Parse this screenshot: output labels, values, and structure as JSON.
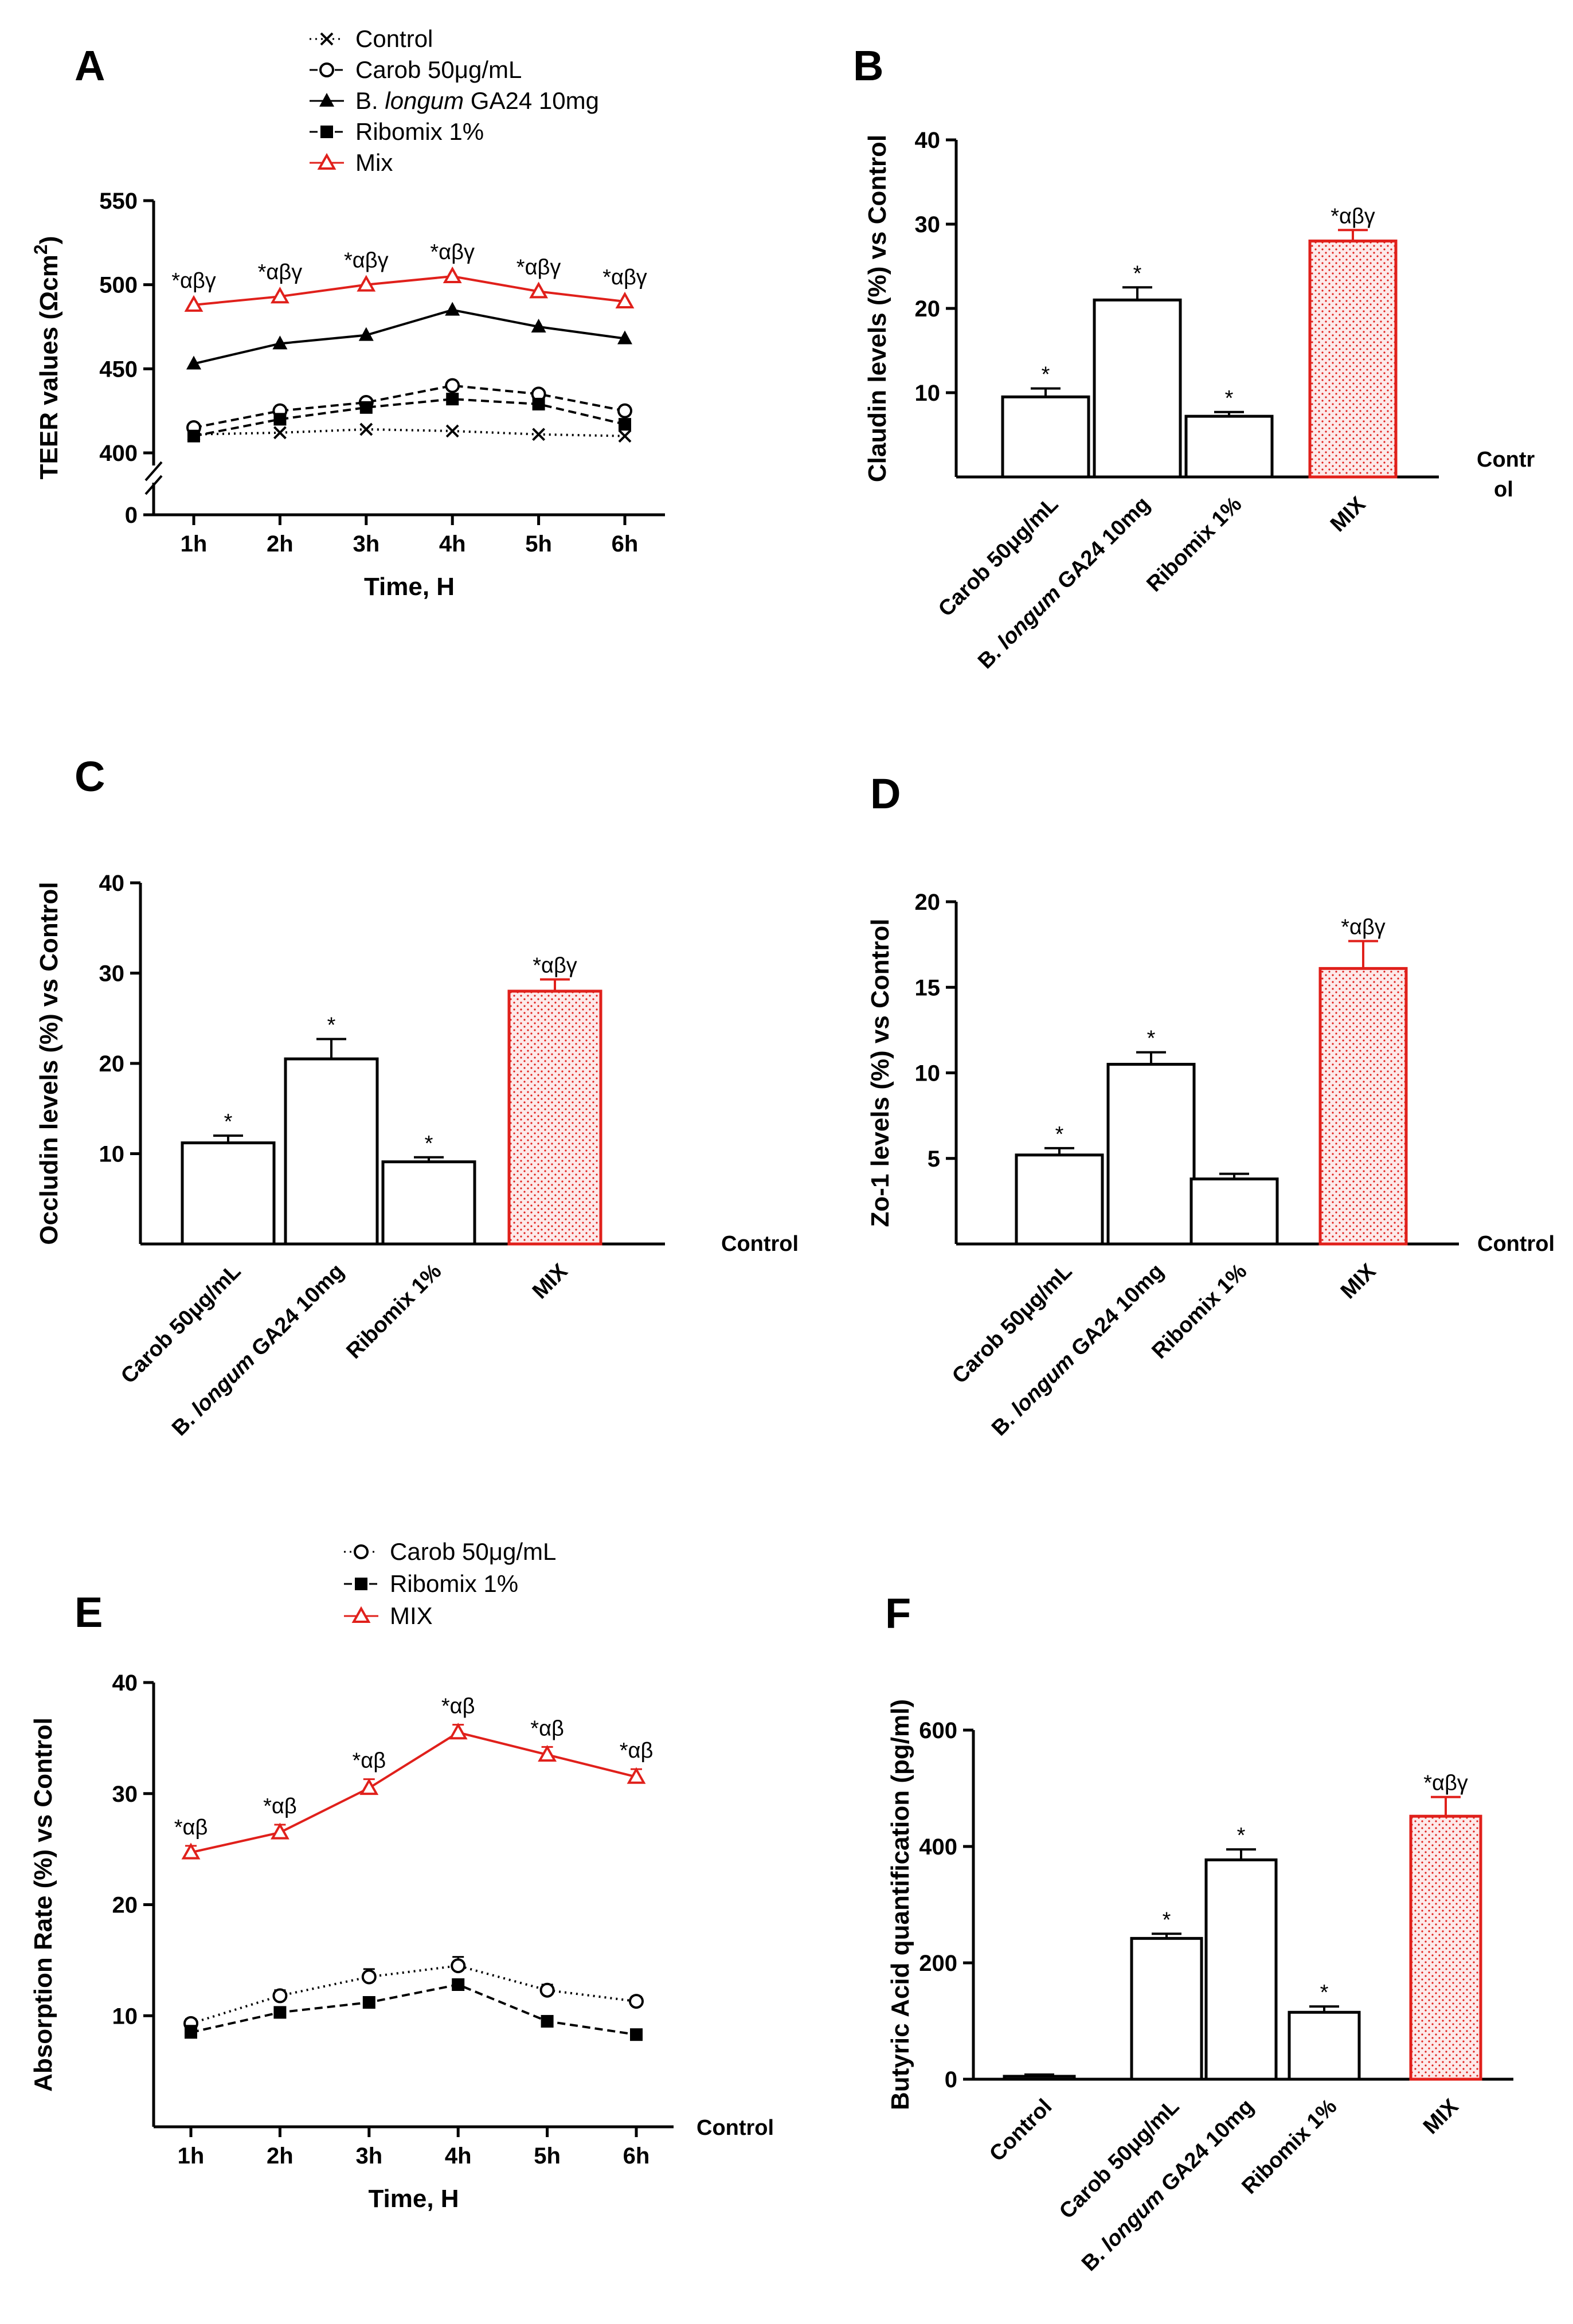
{
  "chart_data": [
    {
      "panel": "A",
      "type": "line",
      "xlabel": "Time, H",
      "ylabel": "TEER values (Ωcm²)",
      "ylabel_main": "TEER values (",
      "ylabel_unit": "Ωcm",
      "ylabel_sup": "2",
      "ylabel_close": ")",
      "x": [
        "1h",
        "2h",
        "3h",
        "4h",
        "5h",
        "6h"
      ],
      "ylim": [
        400,
        550
      ],
      "yticks": [
        "400",
        "450",
        "500",
        "550"
      ],
      "ybreak": true,
      "y_zero_label": "0",
      "series": [
        {
          "name": "Control",
          "marker": "x",
          "color": "#000000",
          "dash": "dotted",
          "values": [
            411,
            412,
            414,
            413,
            411,
            410
          ]
        },
        {
          "name": "Carob 50μg/mL",
          "marker": "open-circle",
          "color": "#000000",
          "dash": "dashed",
          "values": [
            415,
            425,
            430,
            440,
            435,
            425
          ]
        },
        {
          "name": "B. longum GA24 10mg",
          "marker": "filled-triangle",
          "color": "#000000",
          "dash": "solid",
          "values": [
            453,
            465,
            470,
            485,
            475,
            468
          ]
        },
        {
          "name": "Ribomix 1%",
          "marker": "filled-square",
          "color": "#000000",
          "dash": "dashed",
          "values": [
            410,
            420,
            427,
            432,
            429,
            417
          ]
        },
        {
          "name": "Mix",
          "marker": "open-triangle",
          "color": "#e0201b",
          "dash": "solid",
          "values": [
            488,
            493,
            500,
            505,
            496,
            490
          ]
        }
      ],
      "legend": [
        {
          "label_pre": "Control",
          "label_it": "",
          "label_post": ""
        },
        {
          "label_pre": "Carob 50μg/mL",
          "label_it": "",
          "label_post": ""
        },
        {
          "label_pre": "B. ",
          "label_it": "longum",
          "label_post": " GA24 10mg"
        },
        {
          "label_pre": "Ribomix 1%",
          "label_it": "",
          "label_post": ""
        },
        {
          "label_pre": "Mix",
          "label_it": "",
          "label_post": ""
        }
      ],
      "annotations": [
        "*αβγ",
        "*αβγ",
        "*αβγ",
        "*αβγ",
        "*αβγ",
        "*αβγ"
      ]
    },
    {
      "panel": "B",
      "type": "bar",
      "ylabel": "Claudin levels (%) vs Control",
      "ylim": [
        0,
        40
      ],
      "yticks": [
        "10",
        "20",
        "30",
        "40"
      ],
      "baseline_label": [
        "Contr",
        "ol"
      ],
      "categories": [
        {
          "pre": "Carob 50μg/mL",
          "it": "",
          "post": ""
        },
        {
          "pre": "B. ",
          "it": "longum",
          "post": " GA24 10mg"
        },
        {
          "pre": "Ribomix 1%",
          "it": "",
          "post": ""
        },
        {
          "pre": "MIX",
          "it": "",
          "post": ""
        }
      ],
      "values": [
        9.5,
        21,
        7.2,
        28
      ],
      "errors": [
        1,
        1.5,
        0.5,
        1.3
      ],
      "annotations": [
        "*",
        "*",
        "*",
        "*αβγ"
      ],
      "colors": [
        "#000000",
        "#000000",
        "#000000",
        "#e0201b"
      ]
    },
    {
      "panel": "C",
      "type": "bar",
      "ylabel": "Occludin levels (%) vs Control",
      "ylim": [
        0,
        40
      ],
      "yticks": [
        "10",
        "20",
        "30",
        "40"
      ],
      "baseline_label": [
        "Control"
      ],
      "categories": [
        {
          "pre": "Carob 50μg/mL",
          "it": "",
          "post": ""
        },
        {
          "pre": "B. ",
          "it": "longum",
          "post": " GA24 10mg"
        },
        {
          "pre": "Ribomix 1%",
          "it": "",
          "post": ""
        },
        {
          "pre": "MIX",
          "it": "",
          "post": ""
        }
      ],
      "values": [
        11.2,
        20.5,
        9.1,
        28
      ],
      "errors": [
        0.8,
        2.2,
        0.5,
        1.3
      ],
      "annotations": [
        "*",
        "*",
        "*",
        "*αβγ"
      ],
      "colors": [
        "#000000",
        "#000000",
        "#000000",
        "#e0201b"
      ]
    },
    {
      "panel": "D",
      "type": "bar",
      "ylabel": "Zo-1 levels (%) vs Control",
      "ylim": [
        0,
        20
      ],
      "yticks": [
        "5",
        "10",
        "15",
        "20"
      ],
      "baseline_label": [
        "Control"
      ],
      "categories": [
        {
          "pre": "Carob 50μg/mL",
          "it": "",
          "post": ""
        },
        {
          "pre": "B. ",
          "it": "longum",
          "post": " GA24 10mg"
        },
        {
          "pre": "Ribomix 1%",
          "it": "",
          "post": ""
        },
        {
          "pre": "MIX",
          "it": "",
          "post": ""
        }
      ],
      "values": [
        5.2,
        10.5,
        3.8,
        16.1
      ],
      "errors": [
        0.4,
        0.7,
        0.3,
        1.6
      ],
      "annotations": [
        "*",
        "*",
        "",
        "*αβγ"
      ],
      "colors": [
        "#000000",
        "#000000",
        "#000000",
        "#e0201b"
      ]
    },
    {
      "panel": "E",
      "type": "line",
      "xlabel": "Time, H",
      "ylabel": "Absorption Rate (%) vs Control",
      "x": [
        "1h",
        "2h",
        "3h",
        "4h",
        "5h",
        "6h"
      ],
      "ylim": [
        0,
        40
      ],
      "yticks": [
        "10",
        "20",
        "30",
        "40"
      ],
      "baseline_label": [
        "Control"
      ],
      "series": [
        {
          "name": "Carob 50μg/mL",
          "marker": "open-circle",
          "color": "#000000",
          "dash": "dotted",
          "values": [
            9.3,
            11.8,
            13.5,
            14.5,
            12.3,
            11.3
          ],
          "errors": [
            0.4,
            0.5,
            0.7,
            0.8,
            0.5,
            0.4
          ]
        },
        {
          "name": "Ribomix 1%",
          "marker": "filled-square",
          "color": "#000000",
          "dash": "dashed",
          "values": [
            8.5,
            10.3,
            11.2,
            12.8,
            9.5,
            8.3
          ],
          "errors": [
            0.6,
            0.3,
            0.3,
            0.4,
            0.3,
            0.3
          ]
        },
        {
          "name": "MIX",
          "marker": "open-triangle",
          "color": "#e0201b",
          "dash": "solid",
          "values": [
            24.7,
            26.5,
            30.5,
            35.5,
            33.5,
            31.5
          ],
          "errors": [
            0.6,
            0.7,
            0.8,
            0.7,
            0.7,
            0.7
          ]
        }
      ],
      "legend": [
        {
          "label_pre": "Carob 50μg/mL",
          "label_it": "",
          "label_post": ""
        },
        {
          "label_pre": "Ribomix 1%",
          "label_it": "",
          "label_post": ""
        },
        {
          "label_pre": "MIX",
          "label_it": "",
          "label_post": ""
        }
      ],
      "annotations": [
        "*αβ",
        "*αβ",
        "*αβ",
        "*αβ",
        "*αβ",
        "*αβ"
      ]
    },
    {
      "panel": "F",
      "type": "bar",
      "ylabel": "Butyric Acid quantification (pg/ml)",
      "ylim": [
        0,
        600
      ],
      "yticks": [
        "0",
        "200",
        "400",
        "600"
      ],
      "categories": [
        {
          "pre": "Control",
          "it": "",
          "post": ""
        },
        {
          "pre": "Carob 50μg/mL",
          "it": "",
          "post": ""
        },
        {
          "pre": "B. ",
          "it": "longum",
          "post": " GA24 10mg"
        },
        {
          "pre": "Ribomix 1%",
          "it": "",
          "post": ""
        },
        {
          "pre": "MIX",
          "it": "",
          "post": ""
        }
      ],
      "values": [
        5,
        242,
        377,
        115,
        452
      ],
      "errors": [
        3,
        8,
        18,
        10,
        33
      ],
      "annotations": [
        "",
        "*",
        "*",
        "*",
        "*αβγ"
      ],
      "colors": [
        "#000000",
        "#000000",
        "#000000",
        "#000000",
        "#e0201b"
      ]
    }
  ]
}
